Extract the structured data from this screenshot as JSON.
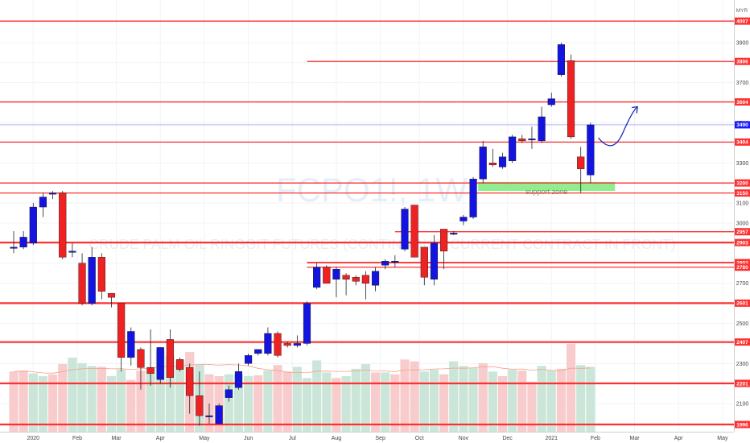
{
  "chart_data": {
    "type": "candlestick",
    "watermark_symbol": "FCPO1!, 1W",
    "watermark_name": "CRUDE PALM OIL RINGGIT FUTURES (CONTINUOUS: CURRENT CONTRACT IN FRONT)",
    "currency": "MYR",
    "colors": {
      "up": "#1414e0",
      "down": "#ee2222",
      "level": "#ff3030",
      "vol_up": "#cbe6d8",
      "vol_down": "#f8cccc",
      "price_line": "#1a1aff",
      "zone": "#90ee90",
      "arrow": "#1a2bb5",
      "ma": "#f4a08a"
    },
    "ylim": [
      1960,
      4080
    ],
    "yticks": [
      2000,
      2100,
      2200,
      2300,
      2400,
      2500,
      2600,
      2700,
      2800,
      2900,
      3000,
      3100,
      3200,
      3300,
      3400,
      3500,
      3600,
      3700,
      3800,
      3900,
      4000
    ],
    "xticks": [
      {
        "label": "2020",
        "week": 2
      },
      {
        "label": "Feb",
        "week": 6.5
      },
      {
        "label": "Mar",
        "week": 10.5
      },
      {
        "label": "Apr",
        "week": 15
      },
      {
        "label": "May",
        "week": 19.5
      },
      {
        "label": "Jun",
        "week": 24
      },
      {
        "label": "Jul",
        "week": 28.5
      },
      {
        "label": "Aug",
        "week": 33
      },
      {
        "label": "Sep",
        "week": 37.5
      },
      {
        "label": "Oct",
        "week": 41.5
      },
      {
        "label": "Nov",
        "week": 46
      },
      {
        "label": "Dec",
        "week": 50.5
      },
      {
        "label": "2021",
        "week": 55
      },
      {
        "label": "Feb",
        "week": 59.5
      },
      {
        "label": "Mar",
        "week": 63.5
      },
      {
        "label": "Apr",
        "week": 68
      },
      {
        "label": "May",
        "week": 72.5
      }
    ],
    "candles": [
      {
        "o": 2880,
        "h": 2960,
        "l": 2850,
        "c": 2880
      },
      {
        "o": 2880,
        "h": 2960,
        "l": 2870,
        "c": 2930
      },
      {
        "o": 2900,
        "h": 3100,
        "l": 2890,
        "c": 3080
      },
      {
        "o": 3080,
        "h": 3150,
        "l": 3030,
        "c": 3130
      },
      {
        "o": 3150,
        "h": 3160,
        "l": 3120,
        "c": 3150
      },
      {
        "o": 3150,
        "h": 3160,
        "l": 2820,
        "c": 2830
      },
      {
        "o": 2860,
        "h": 2900,
        "l": 2830,
        "c": 2860
      },
      {
        "o": 2800,
        "h": 2850,
        "l": 2590,
        "c": 2600
      },
      {
        "o": 2600,
        "h": 2880,
        "l": 2590,
        "c": 2830
      },
      {
        "o": 2830,
        "h": 2850,
        "l": 2620,
        "c": 2660
      },
      {
        "o": 2650,
        "h": 2650,
        "l": 2580,
        "c": 2630
      },
      {
        "o": 2600,
        "h": 2600,
        "l": 2260,
        "c": 2330
      },
      {
        "o": 2330,
        "h": 2480,
        "l": 2290,
        "c": 2460
      },
      {
        "o": 2370,
        "h": 2380,
        "l": 2170,
        "c": 2280
      },
      {
        "o": 2280,
        "h": 2470,
        "l": 2190,
        "c": 2250
      },
      {
        "o": 2220,
        "h": 2380,
        "l": 2200,
        "c": 2380
      },
      {
        "o": 2420,
        "h": 2470,
        "l": 2180,
        "c": 2230
      },
      {
        "o": 2320,
        "h": 2330,
        "l": 2260,
        "c": 2270
      },
      {
        "o": 2280,
        "h": 2300,
        "l": 2050,
        "c": 2140
      },
      {
        "o": 2140,
        "h": 2260,
        "l": 1990,
        "c": 2040
      },
      {
        "o": 2040,
        "h": 2100,
        "l": 2000,
        "c": 2040
      },
      {
        "o": 2000,
        "h": 2100,
        "l": 1996,
        "c": 2090
      },
      {
        "o": 2130,
        "h": 2190,
        "l": 2110,
        "c": 2170
      },
      {
        "o": 2180,
        "h": 2300,
        "l": 2170,
        "c": 2260
      },
      {
        "o": 2300,
        "h": 2350,
        "l": 2290,
        "c": 2340
      },
      {
        "o": 2350,
        "h": 2370,
        "l": 2340,
        "c": 2370
      },
      {
        "o": 2350,
        "h": 2480,
        "l": 2340,
        "c": 2450
      },
      {
        "o": 2450,
        "h": 2460,
        "l": 2330,
        "c": 2340
      },
      {
        "o": 2400,
        "h": 2410,
        "l": 2380,
        "c": 2390
      },
      {
        "o": 2390,
        "h": 2440,
        "l": 2380,
        "c": 2400
      },
      {
        "o": 2400,
        "h": 2610,
        "l": 2390,
        "c": 2600
      },
      {
        "o": 2680,
        "h": 2800,
        "l": 2670,
        "c": 2780
      },
      {
        "o": 2780,
        "h": 2790,
        "l": 2700,
        "c": 2700
      },
      {
        "o": 2720,
        "h": 2780,
        "l": 2630,
        "c": 2770
      },
      {
        "o": 2740,
        "h": 2750,
        "l": 2640,
        "c": 2720
      },
      {
        "o": 2730,
        "h": 2740,
        "l": 2690,
        "c": 2710
      },
      {
        "o": 2740,
        "h": 2760,
        "l": 2620,
        "c": 2700
      },
      {
        "o": 2690,
        "h": 2780,
        "l": 2660,
        "c": 2760
      },
      {
        "o": 2790,
        "h": 2820,
        "l": 2770,
        "c": 2810
      },
      {
        "o": 2810,
        "h": 2840,
        "l": 2780,
        "c": 2810
      },
      {
        "o": 2870,
        "h": 3080,
        "l": 2860,
        "c": 3070
      },
      {
        "o": 3090,
        "h": 3090,
        "l": 2830,
        "c": 2830
      },
      {
        "o": 2880,
        "h": 2880,
        "l": 2690,
        "c": 2730
      },
      {
        "o": 2720,
        "h": 2940,
        "l": 2690,
        "c": 2900
      },
      {
        "o": 2970,
        "h": 2970,
        "l": 2770,
        "c": 2860
      },
      {
        "o": 2950,
        "h": 2960,
        "l": 2940,
        "c": 2950
      },
      {
        "o": 3010,
        "h": 3040,
        "l": 2990,
        "c": 3030
      },
      {
        "o": 3030,
        "h": 3230,
        "l": 3020,
        "c": 3220
      },
      {
        "o": 3220,
        "h": 3410,
        "l": 3200,
        "c": 3380
      },
      {
        "o": 3300,
        "h": 3370,
        "l": 3280,
        "c": 3290
      },
      {
        "o": 3280,
        "h": 3350,
        "l": 3270,
        "c": 3330
      },
      {
        "o": 3310,
        "h": 3440,
        "l": 3300,
        "c": 3430
      },
      {
        "o": 3420,
        "h": 3440,
        "l": 3400,
        "c": 3410
      },
      {
        "o": 3420,
        "h": 3480,
        "l": 3370,
        "c": 3420
      },
      {
        "o": 3410,
        "h": 3580,
        "l": 3400,
        "c": 3530
      },
      {
        "o": 3590,
        "h": 3650,
        "l": 3580,
        "c": 3620
      },
      {
        "o": 3740,
        "h": 3900,
        "l": 3730,
        "c": 3890
      },
      {
        "o": 3810,
        "h": 3840,
        "l": 3420,
        "c": 3430
      },
      {
        "o": 3330,
        "h": 3380,
        "l": 3150,
        "c": 3270
      },
      {
        "o": 3240,
        "h": 3500,
        "l": 3200,
        "c": 3490
      }
    ],
    "volume": [
      {
        "v": 0.65,
        "up": false
      },
      {
        "v": 0.66,
        "up": false
      },
      {
        "v": 0.63,
        "up": true
      },
      {
        "v": 0.6,
        "up": true
      },
      {
        "v": 0.62,
        "up": false
      },
      {
        "v": 0.73,
        "up": false
      },
      {
        "v": 0.8,
        "up": true
      },
      {
        "v": 0.74,
        "up": true
      },
      {
        "v": 0.71,
        "up": true
      },
      {
        "v": 0.7,
        "up": false
      },
      {
        "v": 0.6,
        "up": true
      },
      {
        "v": 0.67,
        "up": true
      },
      {
        "v": 0.56,
        "up": false
      },
      {
        "v": 0.66,
        "up": false
      },
      {
        "v": 0.7,
        "up": true
      },
      {
        "v": 0.88,
        "up": true
      },
      {
        "v": 0.82,
        "up": true
      },
      {
        "v": 0.77,
        "up": true
      },
      {
        "v": 0.86,
        "up": false
      },
      {
        "v": 0.72,
        "up": true
      },
      {
        "v": 0.62,
        "up": false
      },
      {
        "v": 0.6,
        "up": false
      },
      {
        "v": 0.62,
        "up": true
      },
      {
        "v": 0.62,
        "up": true
      },
      {
        "v": 0.6,
        "up": true
      },
      {
        "v": 0.61,
        "up": false
      },
      {
        "v": 0.66,
        "up": true
      },
      {
        "v": 0.72,
        "up": false
      },
      {
        "v": 0.65,
        "up": false
      },
      {
        "v": 0.7,
        "up": true
      },
      {
        "v": 0.58,
        "up": true
      },
      {
        "v": 0.77,
        "up": true
      },
      {
        "v": 0.64,
        "up": true
      },
      {
        "v": 0.58,
        "up": false
      },
      {
        "v": 0.6,
        "up": true
      },
      {
        "v": 0.68,
        "up": true
      },
      {
        "v": 0.73,
        "up": true
      },
      {
        "v": 0.64,
        "up": false
      },
      {
        "v": 0.64,
        "up": true
      },
      {
        "v": 0.62,
        "up": false
      },
      {
        "v": 0.78,
        "up": false
      },
      {
        "v": 0.76,
        "up": false
      },
      {
        "v": 0.65,
        "up": true
      },
      {
        "v": 0.67,
        "up": true
      },
      {
        "v": 0.62,
        "up": false
      },
      {
        "v": 0.76,
        "up": true
      },
      {
        "v": 0.71,
        "up": true
      },
      {
        "v": 0.69,
        "up": true
      },
      {
        "v": 0.74,
        "up": false
      },
      {
        "v": 0.65,
        "up": true
      },
      {
        "v": 0.6,
        "up": false
      },
      {
        "v": 0.67,
        "up": true
      },
      {
        "v": 0.66,
        "up": false
      },
      {
        "v": 0.54,
        "up": false
      },
      {
        "v": 0.71,
        "up": true
      },
      {
        "v": 0.66,
        "up": true
      },
      {
        "v": 0.68,
        "up": false
      },
      {
        "v": 0.95,
        "up": false
      },
      {
        "v": 0.72,
        "up": true
      },
      {
        "v": 0.7,
        "up": true
      }
    ],
    "levels": [
      {
        "price": 4007,
        "label": "4007",
        "width": 1.3,
        "start_week": null
      },
      {
        "price": 3806,
        "label": "3806",
        "width": 1.3,
        "start_week": 30.0
      },
      {
        "price": 3604,
        "label": "3604",
        "width": 1.3,
        "start_week": null
      },
      {
        "price": 3404,
        "label": "3404",
        "width": 1.3,
        "start_week": null
      },
      {
        "price": 3200,
        "label": "3200",
        "width": 1.3,
        "start_week": null
      },
      {
        "price": 3150,
        "label": "3150",
        "width": 1.3,
        "start_week": null
      },
      {
        "price": 2957,
        "label": "2957",
        "width": 1.3,
        "start_week": 39.0
      },
      {
        "price": 2903,
        "label": "2903",
        "width": 2.2,
        "start_week": null
      },
      {
        "price": 2803,
        "label": "2803",
        "width": 1.8,
        "start_week": 30.0
      },
      {
        "price": 2780,
        "label": "2780",
        "width": 1.3,
        "start_week": 30.0
      },
      {
        "price": 2601,
        "label": "2601",
        "width": 2.2,
        "start_week": null
      },
      {
        "price": 2407,
        "label": "2407",
        "width": 2.2,
        "start_week": null
      },
      {
        "price": 2201,
        "label": "2201",
        "width": 2.2,
        "start_week": null
      },
      {
        "price": 1996,
        "label": "1996",
        "width": 2.2,
        "start_week": null
      }
    ],
    "current_price": {
      "price": 3490,
      "label": "3490"
    },
    "support_zone": {
      "low": 3160,
      "high": 3205,
      "label": "support zone",
      "start_week": 47.5,
      "end_week": 61.5
    },
    "arrow": {
      "from_week": 59.8,
      "from_price": 3425,
      "to_week": 63.8,
      "to_price": 3580
    }
  }
}
